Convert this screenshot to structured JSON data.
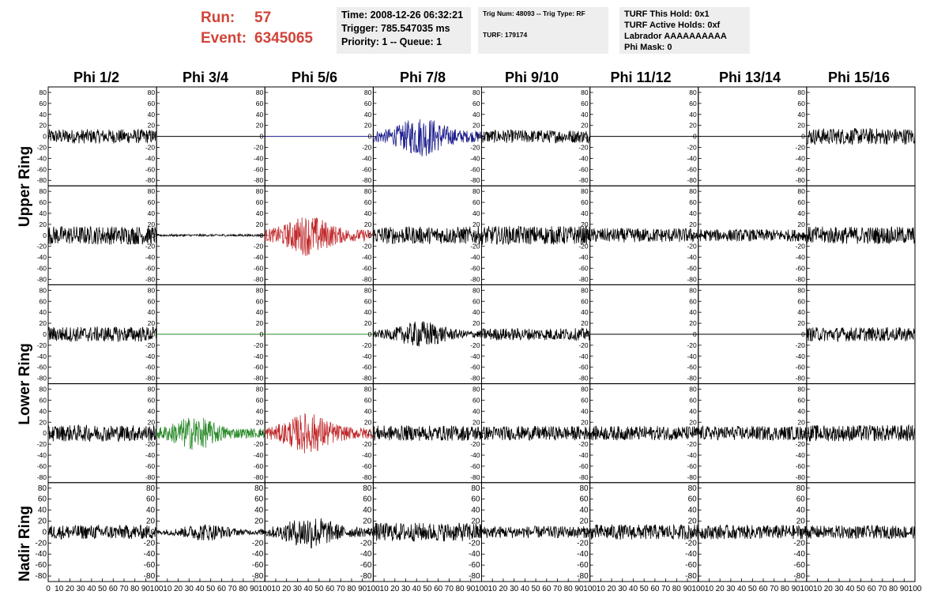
{
  "header": {
    "run_label": "Run:",
    "run_value": "57",
    "event_label": "Event:",
    "event_value": "6345065",
    "time_box": [
      "Time: 2008-12-26 06:32:21",
      "Trigger: 785.547035 ms",
      "Priority: 1 -- Queue: 1"
    ],
    "trig_box": [
      "Trig Num: 48093 -- Trig Type: RF",
      "TURF: 179174"
    ],
    "turf_box": [
      "TURF This Hold: 0x1",
      "TURF Active Holds: 0xf",
      "Labrador AAAAAAAAAA",
      "Phi Mask: 0"
    ]
  },
  "columns": [
    "Phi 1/2",
    "Phi 3/4",
    "Phi 5/6",
    "Phi 7/8",
    "Phi 9/10",
    "Phi 11/12",
    "Phi 13/14",
    "Phi 15/16"
  ],
  "ring_labels": [
    "Upper Ring",
    "Lower Ring",
    "Nadir Ring"
  ],
  "colors": {
    "black": "#000000",
    "blue": "#1c1c8c",
    "red": "#c0282a",
    "green": "#2a8a2a",
    "accent_text": "#d0443a"
  },
  "chart_data": {
    "type": "line",
    "description_units": "waveform grid",
    "x_range": [
      0,
      100
    ],
    "y_range": [
      -90,
      90
    ],
    "y_ticks": [
      -80,
      -60,
      -40,
      -20,
      0,
      20,
      40,
      60,
      80
    ],
    "x_ticks": [
      0,
      10,
      20,
      30,
      40,
      50,
      60,
      70,
      80,
      90,
      100
    ],
    "grid": false,
    "rows": [
      {
        "ring": "Upper Ring",
        "panels": [
          {
            "col": "Phi 1/2",
            "color": "black",
            "amp": 13,
            "flat": false
          },
          {
            "col": "Phi 3/4",
            "color": "black",
            "amp": 0,
            "flat": true
          },
          {
            "col": "Phi 5/6",
            "color": "blue",
            "amp": 0,
            "flat": true
          },
          {
            "col": "Phi 7/8",
            "color": "blue",
            "amp": 30,
            "flat": false,
            "burst": 45
          },
          {
            "col": "Phi 9/10",
            "color": "black",
            "amp": 12,
            "flat": false
          },
          {
            "col": "Phi 11/12",
            "color": "black",
            "amp": 0,
            "flat": true
          },
          {
            "col": "Phi 13/14",
            "color": "black",
            "amp": 0,
            "flat": true
          },
          {
            "col": "Phi 15/16",
            "color": "black",
            "amp": 15,
            "flat": false
          }
        ]
      },
      {
        "ring": "Upper Ring",
        "panels": [
          {
            "col": "Phi 1/2",
            "color": "black",
            "amp": 17,
            "flat": false
          },
          {
            "col": "Phi 3/4",
            "color": "black",
            "amp": 2,
            "flat": false
          },
          {
            "col": "Phi 5/6",
            "color": "red",
            "amp": 30,
            "flat": false,
            "burst": 40
          },
          {
            "col": "Phi 7/8",
            "color": "black",
            "amp": 16,
            "flat": false
          },
          {
            "col": "Phi 9/10",
            "color": "black",
            "amp": 17,
            "flat": false
          },
          {
            "col": "Phi 11/12",
            "color": "black",
            "amp": 13,
            "flat": false
          },
          {
            "col": "Phi 13/14",
            "color": "black",
            "amp": 11,
            "flat": false
          },
          {
            "col": "Phi 15/16",
            "color": "black",
            "amp": 16,
            "flat": false
          }
        ]
      },
      {
        "ring": "Lower Ring",
        "panels": [
          {
            "col": "Phi 1/2",
            "color": "black",
            "amp": 14,
            "flat": false
          },
          {
            "col": "Phi 3/4",
            "color": "green",
            "amp": 0,
            "flat": true
          },
          {
            "col": "Phi 5/6",
            "color": "green",
            "amp": 0,
            "flat": true
          },
          {
            "col": "Phi 7/8",
            "color": "black",
            "amp": 20,
            "flat": false,
            "burst": 45
          },
          {
            "col": "Phi 9/10",
            "color": "black",
            "amp": 11,
            "flat": false
          },
          {
            "col": "Phi 11/12",
            "color": "black",
            "amp": 0,
            "flat": true
          },
          {
            "col": "Phi 13/14",
            "color": "black",
            "amp": 0,
            "flat": true
          },
          {
            "col": "Phi 15/16",
            "color": "black",
            "amp": 13,
            "flat": false
          }
        ]
      },
      {
        "ring": "Lower Ring",
        "panels": [
          {
            "col": "Phi 1/2",
            "color": "black",
            "amp": 15,
            "flat": false
          },
          {
            "col": "Phi 3/4",
            "color": "green",
            "amp": 25,
            "flat": false,
            "burst": 35
          },
          {
            "col": "Phi 5/6",
            "color": "red",
            "amp": 30,
            "flat": false,
            "burst": 40
          },
          {
            "col": "Phi 7/8",
            "color": "black",
            "amp": 14,
            "flat": false
          },
          {
            "col": "Phi 9/10",
            "color": "black",
            "amp": 13,
            "flat": false
          },
          {
            "col": "Phi 11/12",
            "color": "black",
            "amp": 13,
            "flat": false
          },
          {
            "col": "Phi 13/14",
            "color": "black",
            "amp": 13,
            "flat": false
          },
          {
            "col": "Phi 15/16",
            "color": "black",
            "amp": 15,
            "flat": false
          }
        ]
      },
      {
        "ring": "Nadir Ring",
        "panels": [
          {
            "col": "Phi 1/2",
            "color": "black",
            "amp": 13,
            "flat": false
          },
          {
            "col": "Phi 3/4",
            "color": "black",
            "amp": 13,
            "flat": false,
            "burst": 45
          },
          {
            "col": "Phi 5/6",
            "color": "black",
            "amp": 25,
            "flat": false,
            "burst": 42
          },
          {
            "col": "Phi 7/8",
            "color": "black",
            "amp": 17,
            "flat": false
          },
          {
            "col": "Phi 9/10",
            "color": "black",
            "amp": 11,
            "flat": false
          },
          {
            "col": "Phi 11/12",
            "color": "black",
            "amp": 14,
            "flat": false
          },
          {
            "col": "Phi 13/14",
            "color": "black",
            "amp": 13,
            "flat": false
          },
          {
            "col": "Phi 15/16",
            "color": "black",
            "amp": 12,
            "flat": false
          }
        ]
      }
    ]
  }
}
